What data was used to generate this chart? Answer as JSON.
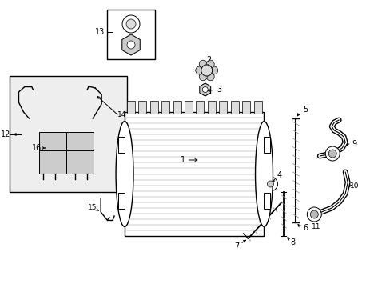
{
  "bg_color": "#ffffff",
  "line_color": "#000000",
  "fig_w": 4.89,
  "fig_h": 3.6,
  "dpi": 100
}
